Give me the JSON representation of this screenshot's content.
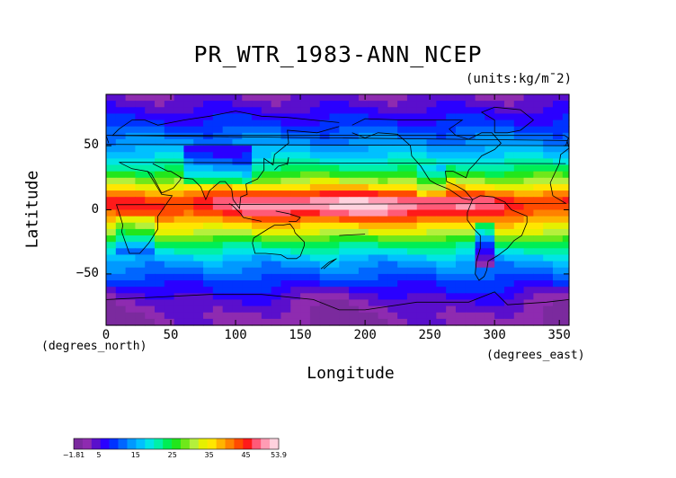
{
  "chart_data": {
    "type": "heatmap",
    "title": "PR_WTR_1983-ANN_NCEP",
    "units": "(units:kg/m¯2)",
    "xlabel": "Longitude",
    "ylabel": "Latitude",
    "x_units_label": "(degrees_east)",
    "y_units_label": "(degrees_north)",
    "xlim": [
      0,
      357.5
    ],
    "ylim": [
      -90,
      90
    ],
    "x_ticks": [
      "0",
      "50",
      "100",
      "150",
      "200",
      "250",
      "300",
      "350"
    ],
    "y_ticks": [
      "50",
      "0",
      "−50"
    ],
    "colorbar": {
      "min": -1.81,
      "max": 53.9,
      "tick_labels": [
        "−1.81",
        "5",
        "15",
        "25",
        "35",
        "45",
        "53.9"
      ]
    },
    "zonal_profile": {
      "latitude": [
        90,
        80,
        70,
        60,
        50,
        40,
        30,
        20,
        10,
        5,
        0,
        -5,
        -10,
        -20,
        -30,
        -40,
        -50,
        -60,
        -70,
        -80,
        -90
      ],
      "value": [
        3,
        5,
        8,
        11,
        14,
        18,
        24,
        33,
        45,
        49,
        47,
        43,
        38,
        30,
        21,
        15,
        11,
        8,
        4,
        2,
        1
      ]
    }
  }
}
